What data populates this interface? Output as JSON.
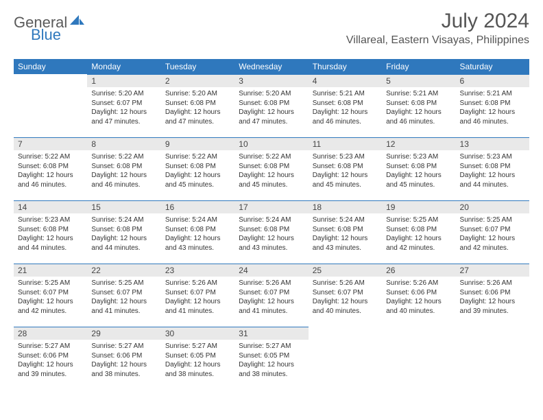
{
  "brand": {
    "part1": "General",
    "part2": "Blue"
  },
  "title": "July 2024",
  "location": "Villareal, Eastern Visayas, Philippines",
  "colors": {
    "header_bg": "#2f78bd",
    "header_text": "#ffffff",
    "daynum_bg": "#e9e9e9",
    "border": "#2f78bd",
    "text": "#333333",
    "title_text": "#555555"
  },
  "weekdays": [
    "Sunday",
    "Monday",
    "Tuesday",
    "Wednesday",
    "Thursday",
    "Friday",
    "Saturday"
  ],
  "weeks": [
    [
      null,
      {
        "n": "1",
        "sr": "Sunrise: 5:20 AM",
        "ss": "Sunset: 6:07 PM",
        "d1": "Daylight: 12 hours",
        "d2": "and 47 minutes."
      },
      {
        "n": "2",
        "sr": "Sunrise: 5:20 AM",
        "ss": "Sunset: 6:08 PM",
        "d1": "Daylight: 12 hours",
        "d2": "and 47 minutes."
      },
      {
        "n": "3",
        "sr": "Sunrise: 5:20 AM",
        "ss": "Sunset: 6:08 PM",
        "d1": "Daylight: 12 hours",
        "d2": "and 47 minutes."
      },
      {
        "n": "4",
        "sr": "Sunrise: 5:21 AM",
        "ss": "Sunset: 6:08 PM",
        "d1": "Daylight: 12 hours",
        "d2": "and 46 minutes."
      },
      {
        "n": "5",
        "sr": "Sunrise: 5:21 AM",
        "ss": "Sunset: 6:08 PM",
        "d1": "Daylight: 12 hours",
        "d2": "and 46 minutes."
      },
      {
        "n": "6",
        "sr": "Sunrise: 5:21 AM",
        "ss": "Sunset: 6:08 PM",
        "d1": "Daylight: 12 hours",
        "d2": "and 46 minutes."
      }
    ],
    [
      {
        "n": "7",
        "sr": "Sunrise: 5:22 AM",
        "ss": "Sunset: 6:08 PM",
        "d1": "Daylight: 12 hours",
        "d2": "and 46 minutes."
      },
      {
        "n": "8",
        "sr": "Sunrise: 5:22 AM",
        "ss": "Sunset: 6:08 PM",
        "d1": "Daylight: 12 hours",
        "d2": "and 46 minutes."
      },
      {
        "n": "9",
        "sr": "Sunrise: 5:22 AM",
        "ss": "Sunset: 6:08 PM",
        "d1": "Daylight: 12 hours",
        "d2": "and 45 minutes."
      },
      {
        "n": "10",
        "sr": "Sunrise: 5:22 AM",
        "ss": "Sunset: 6:08 PM",
        "d1": "Daylight: 12 hours",
        "d2": "and 45 minutes."
      },
      {
        "n": "11",
        "sr": "Sunrise: 5:23 AM",
        "ss": "Sunset: 6:08 PM",
        "d1": "Daylight: 12 hours",
        "d2": "and 45 minutes."
      },
      {
        "n": "12",
        "sr": "Sunrise: 5:23 AM",
        "ss": "Sunset: 6:08 PM",
        "d1": "Daylight: 12 hours",
        "d2": "and 45 minutes."
      },
      {
        "n": "13",
        "sr": "Sunrise: 5:23 AM",
        "ss": "Sunset: 6:08 PM",
        "d1": "Daylight: 12 hours",
        "d2": "and 44 minutes."
      }
    ],
    [
      {
        "n": "14",
        "sr": "Sunrise: 5:23 AM",
        "ss": "Sunset: 6:08 PM",
        "d1": "Daylight: 12 hours",
        "d2": "and 44 minutes."
      },
      {
        "n": "15",
        "sr": "Sunrise: 5:24 AM",
        "ss": "Sunset: 6:08 PM",
        "d1": "Daylight: 12 hours",
        "d2": "and 44 minutes."
      },
      {
        "n": "16",
        "sr": "Sunrise: 5:24 AM",
        "ss": "Sunset: 6:08 PM",
        "d1": "Daylight: 12 hours",
        "d2": "and 43 minutes."
      },
      {
        "n": "17",
        "sr": "Sunrise: 5:24 AM",
        "ss": "Sunset: 6:08 PM",
        "d1": "Daylight: 12 hours",
        "d2": "and 43 minutes."
      },
      {
        "n": "18",
        "sr": "Sunrise: 5:24 AM",
        "ss": "Sunset: 6:08 PM",
        "d1": "Daylight: 12 hours",
        "d2": "and 43 minutes."
      },
      {
        "n": "19",
        "sr": "Sunrise: 5:25 AM",
        "ss": "Sunset: 6:08 PM",
        "d1": "Daylight: 12 hours",
        "d2": "and 42 minutes."
      },
      {
        "n": "20",
        "sr": "Sunrise: 5:25 AM",
        "ss": "Sunset: 6:07 PM",
        "d1": "Daylight: 12 hours",
        "d2": "and 42 minutes."
      }
    ],
    [
      {
        "n": "21",
        "sr": "Sunrise: 5:25 AM",
        "ss": "Sunset: 6:07 PM",
        "d1": "Daylight: 12 hours",
        "d2": "and 42 minutes."
      },
      {
        "n": "22",
        "sr": "Sunrise: 5:25 AM",
        "ss": "Sunset: 6:07 PM",
        "d1": "Daylight: 12 hours",
        "d2": "and 41 minutes."
      },
      {
        "n": "23",
        "sr": "Sunrise: 5:26 AM",
        "ss": "Sunset: 6:07 PM",
        "d1": "Daylight: 12 hours",
        "d2": "and 41 minutes."
      },
      {
        "n": "24",
        "sr": "Sunrise: 5:26 AM",
        "ss": "Sunset: 6:07 PM",
        "d1": "Daylight: 12 hours",
        "d2": "and 41 minutes."
      },
      {
        "n": "25",
        "sr": "Sunrise: 5:26 AM",
        "ss": "Sunset: 6:07 PM",
        "d1": "Daylight: 12 hours",
        "d2": "and 40 minutes."
      },
      {
        "n": "26",
        "sr": "Sunrise: 5:26 AM",
        "ss": "Sunset: 6:06 PM",
        "d1": "Daylight: 12 hours",
        "d2": "and 40 minutes."
      },
      {
        "n": "27",
        "sr": "Sunrise: 5:26 AM",
        "ss": "Sunset: 6:06 PM",
        "d1": "Daylight: 12 hours",
        "d2": "and 39 minutes."
      }
    ],
    [
      {
        "n": "28",
        "sr": "Sunrise: 5:27 AM",
        "ss": "Sunset: 6:06 PM",
        "d1": "Daylight: 12 hours",
        "d2": "and 39 minutes."
      },
      {
        "n": "29",
        "sr": "Sunrise: 5:27 AM",
        "ss": "Sunset: 6:06 PM",
        "d1": "Daylight: 12 hours",
        "d2": "and 38 minutes."
      },
      {
        "n": "30",
        "sr": "Sunrise: 5:27 AM",
        "ss": "Sunset: 6:05 PM",
        "d1": "Daylight: 12 hours",
        "d2": "and 38 minutes."
      },
      {
        "n": "31",
        "sr": "Sunrise: 5:27 AM",
        "ss": "Sunset: 6:05 PM",
        "d1": "Daylight: 12 hours",
        "d2": "and 38 minutes."
      },
      null,
      null,
      null
    ]
  ]
}
